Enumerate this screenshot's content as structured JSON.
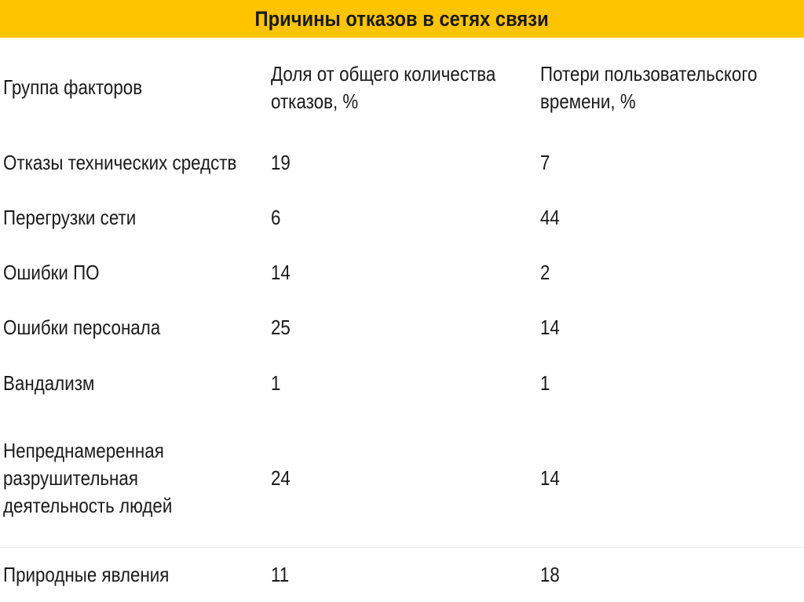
{
  "title": "Причины отказов в сетях связи",
  "table": {
    "headers": {
      "group": "Группа факторов",
      "share_line1": "Доля от общего количества",
      "share_line2": "отказов, %",
      "loss_line1": "Потери пользовательского",
      "loss_line2": "времени, %"
    },
    "rows": [
      {
        "group": "Отказы технических средств",
        "share": "19",
        "loss": "7"
      },
      {
        "group": "Перегрузки сети",
        "share": "6",
        "loss": "44"
      },
      {
        "group": "Ошибки ПО",
        "share": "14",
        "loss": "2"
      },
      {
        "group": "Ошибки персонала",
        "share": "25",
        "loss": "14"
      },
      {
        "group": "Вандализм",
        "share": "1",
        "loss": "1"
      },
      {
        "group_line1": "Непреднамеренная",
        "group_line2": "разрушительная",
        "group_line3": "деятельность людей",
        "share": "24",
        "loss": "14"
      },
      {
        "group": "Природные явления",
        "share": "11",
        "loss": "18"
      }
    ]
  }
}
